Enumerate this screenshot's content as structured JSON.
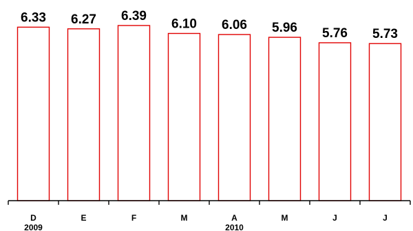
{
  "chart_data": {
    "type": "bar",
    "categories": [
      "D",
      "E",
      "F",
      "M",
      "A",
      "M",
      "J",
      "J"
    ],
    "values": [
      6.33,
      6.27,
      6.39,
      6.1,
      6.06,
      5.96,
      5.76,
      5.73
    ],
    "value_labels": [
      "6.33",
      "6.27",
      "6.39",
      "6.10",
      "6.06",
      "5.96",
      "5.76",
      "5.73"
    ],
    "year_labels": [
      {
        "text": "2009",
        "category_index": 0
      },
      {
        "text": "2010",
        "category_index": 4
      }
    ],
    "title": "",
    "xlabel": "",
    "ylabel": "",
    "ylim": [
      0,
      6.39
    ],
    "grid": false,
    "legend": "none",
    "bar_color": "#e00000",
    "bar_fill": "#ffffff"
  }
}
